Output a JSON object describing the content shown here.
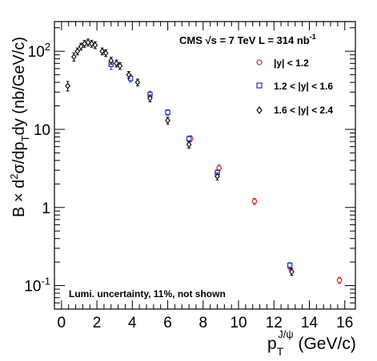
{
  "chart_data": {
    "type": "scatter",
    "yscale": "log",
    "xlim": [
      -0.4,
      16.6
    ],
    "ylim": [
      0.05,
      240
    ],
    "grid": false,
    "legend_placement": "top-right",
    "xlabel": {
      "main": "p",
      "sub": "T",
      "sup": "J/ψ",
      "unit": " (GeV/c)"
    },
    "ylabel": {
      "p1": "B × d",
      "sup1": "2",
      "p2": "σ/dp",
      "sub1": "T",
      "p3": "dy (nb/GeV/c)"
    },
    "x_ticks": [
      0,
      2,
      4,
      6,
      8,
      10,
      12,
      14,
      16
    ],
    "x_tick_labels": [
      "0",
      "2",
      "4",
      "6",
      "8",
      "10",
      "12",
      "14",
      "16"
    ],
    "y_ticks": [
      {
        "value": 0.1,
        "base": "10",
        "exp": "-1"
      },
      {
        "value": 1,
        "base": "1",
        "exp": ""
      },
      {
        "value": 10,
        "base": "10",
        "exp": ""
      },
      {
        "value": 100,
        "base": "10",
        "exp": "2"
      }
    ],
    "title": {
      "p1": "CMS ",
      "sqrt": "√",
      "p2": "s = 7 TeV  L = 314 nb",
      "sup": "-1"
    },
    "annotation": "Lumi. uncertainty, 11%, not shown",
    "series": [
      {
        "name": "|y| < 1.2",
        "marker": "circle",
        "color": "#e8201e",
        "x": [
          7.3,
          8.9,
          10.9,
          12.9,
          15.7
        ],
        "y": [
          7.6,
          3.2,
          1.2,
          0.174,
          0.117
        ],
        "err": [
          0.09,
          0.09,
          0.09,
          0.09,
          0.09
        ]
      },
      {
        "name": "1.2 < |y| < 1.6",
        "marker": "square",
        "color": "#1c2fd8",
        "x": [
          2.8,
          3.9,
          5.0,
          6.0,
          7.2,
          8.8,
          12.9
        ],
        "y": [
          68,
          45,
          28,
          16.5,
          7.6,
          2.8,
          0.182
        ],
        "err": [
          0.14,
          0.1,
          0.1,
          0.08,
          0.08,
          0.08,
          0.08
        ]
      },
      {
        "name": "1.6 < |y| < 2.4",
        "marker": "diamond",
        "color": "#000000",
        "x": [
          0.35,
          0.7,
          0.9,
          1.1,
          1.3,
          1.5,
          1.7,
          1.9,
          2.3,
          2.5,
          2.8,
          3.1,
          3.3,
          3.8,
          4.3,
          5.0,
          6.0,
          7.2,
          8.8,
          13.0
        ],
        "y": [
          36,
          85,
          100,
          115,
          125,
          130,
          125,
          120,
          100,
          95,
          76,
          70,
          65,
          50,
          40,
          25,
          13,
          6.4,
          2.5,
          0.15
        ],
        "err": [
          0.14,
          0.12,
          0.1,
          0.1,
          0.1,
          0.1,
          0.1,
          0.1,
          0.1,
          0.1,
          0.1,
          0.1,
          0.1,
          0.1,
          0.1,
          0.1,
          0.1,
          0.1,
          0.1,
          0.1
        ]
      }
    ]
  }
}
